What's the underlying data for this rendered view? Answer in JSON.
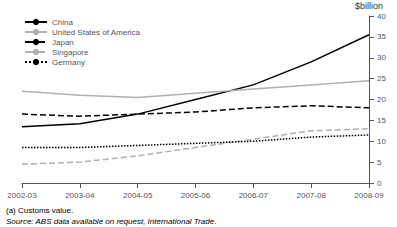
{
  "chart_data": {
    "type": "line",
    "categories": [
      "2002-03",
      "2003-04",
      "2004-05",
      "2005-06",
      "2006-07",
      "2007-08",
      "2008-09"
    ],
    "series": [
      {
        "name": "China",
        "color": "#000000",
        "line_style": "solid",
        "values": [
          13.5,
          14.2,
          16.5,
          20.0,
          23.5,
          29.0,
          35.5
        ]
      },
      {
        "name": "United States of America",
        "color": "#b0b0b0",
        "line_style": "solid",
        "values": [
          22.0,
          21.0,
          20.5,
          21.5,
          22.5,
          23.5,
          24.5
        ]
      },
      {
        "name": "Japan",
        "color": "#000000",
        "line_style": "dashed",
        "values": [
          16.5,
          16.0,
          16.5,
          17.0,
          18.0,
          18.5,
          18.0
        ]
      },
      {
        "name": "Singapore",
        "color": "#b0b0b0",
        "line_style": "dashed",
        "values": [
          4.5,
          5.0,
          6.5,
          8.5,
          10.5,
          12.5,
          13.0
        ]
      },
      {
        "name": "Germany",
        "color": "#000000",
        "line_style": "dotted",
        "values": [
          8.5,
          8.5,
          9.0,
          9.5,
          10.0,
          11.0,
          11.5
        ]
      }
    ],
    "ylabel": "$billion",
    "ylim": [
      0,
      40
    ],
    "yticks": [
      0,
      5,
      10,
      15,
      20,
      25,
      30,
      35,
      40
    ],
    "annotations": [
      "(a) Customs value.",
      "Source: ABS data available on request, International Trade."
    ],
    "legend": "upper left",
    "grid": false
  }
}
